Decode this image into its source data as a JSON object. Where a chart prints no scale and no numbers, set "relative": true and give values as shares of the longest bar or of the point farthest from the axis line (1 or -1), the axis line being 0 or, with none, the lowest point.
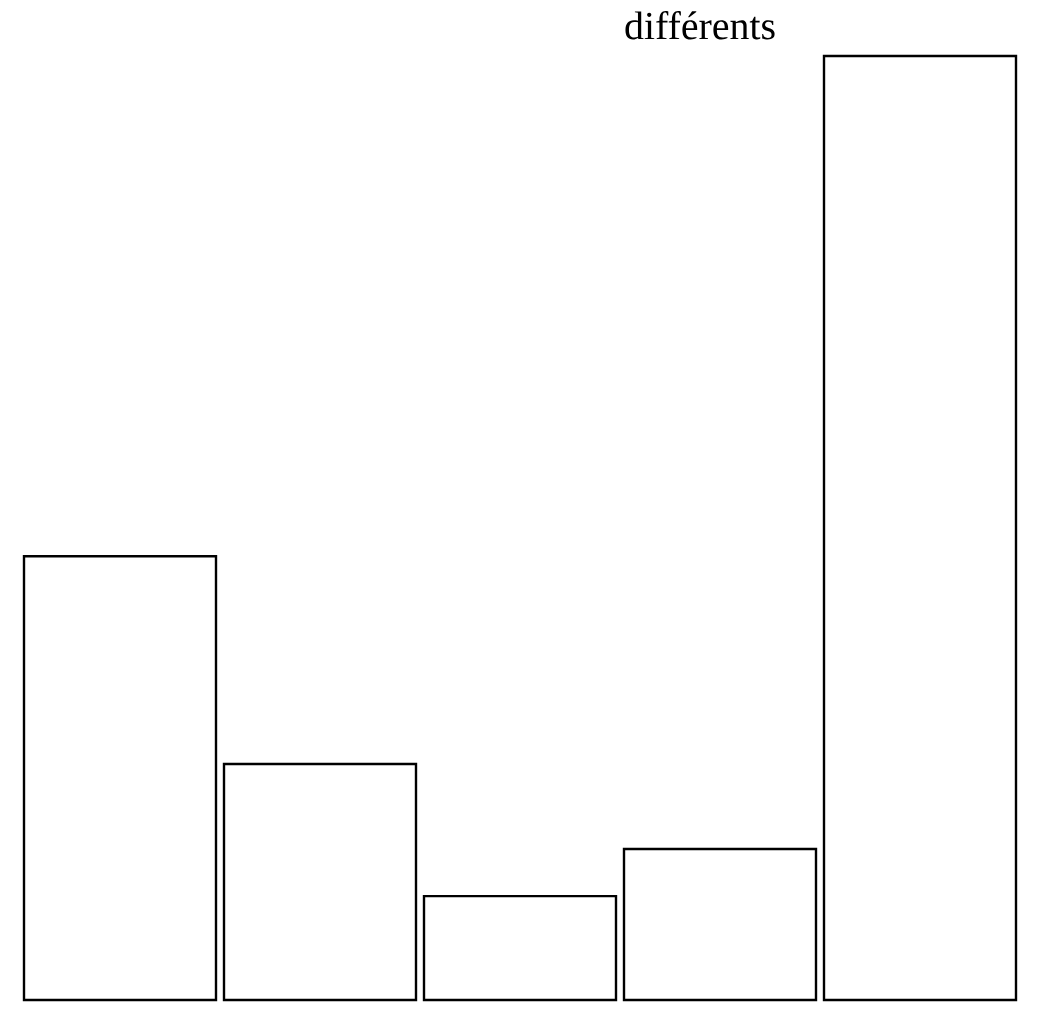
{
  "chart_data": {
    "type": "bar",
    "relative": true,
    "categories": [
      null,
      null,
      null,
      null,
      null
    ],
    "values": [
      0.47,
      0.25,
      0.11,
      0.16,
      1
    ],
    "color": "#ffffff",
    "annotations": [
      "différents"
    ]
  }
}
